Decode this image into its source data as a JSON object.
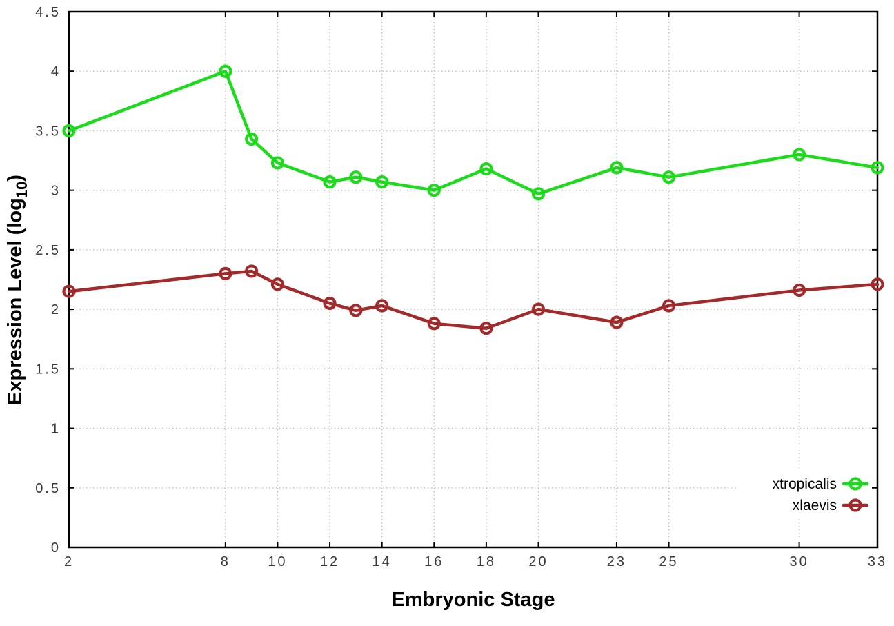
{
  "figure": {
    "xlabel": "Embryonic Stage",
    "ylabel_pre": "Expression Level (log",
    "ylabel_sub": "10",
    "ylabel_post": ")"
  },
  "chart_data": {
    "type": "line",
    "title": "",
    "xlabel": "Embryonic Stage",
    "ylabel": "Expression Level (log10)",
    "x": [
      2,
      8,
      9,
      10,
      12,
      13,
      14,
      16,
      18,
      20,
      23,
      25,
      30,
      33
    ],
    "series": [
      {
        "name": "xtropicalis",
        "color": "#1bdb1b",
        "marker": "open-circle",
        "values": [
          3.5,
          4.0,
          3.43,
          3.23,
          3.07,
          3.11,
          3.07,
          3.0,
          3.18,
          2.97,
          3.19,
          3.11,
          3.3,
          3.19
        ]
      },
      {
        "name": "xlaevis",
        "color": "#a32a2a",
        "marker": "open-circle",
        "values": [
          2.15,
          2.3,
          2.32,
          2.21,
          2.05,
          1.99,
          2.03,
          1.88,
          1.84,
          2.0,
          1.89,
          2.03,
          2.16,
          2.21
        ]
      }
    ],
    "xlim": [
      2,
      33
    ],
    "ylim": [
      0,
      4.5
    ],
    "xticks": [
      2,
      8,
      10,
      12,
      14,
      16,
      18,
      20,
      23,
      25,
      30,
      33
    ],
    "yticks": [
      0,
      0.5,
      1,
      1.5,
      2,
      2.5,
      3,
      3.5,
      4,
      4.5
    ],
    "grid": true,
    "grid_style": "dotted",
    "legend_position": "bottom-right",
    "colors": {
      "grid": "#bbbbbb",
      "axis": "#000000",
      "tick_label": "#3a3a3a",
      "background": "#ffffff"
    }
  }
}
